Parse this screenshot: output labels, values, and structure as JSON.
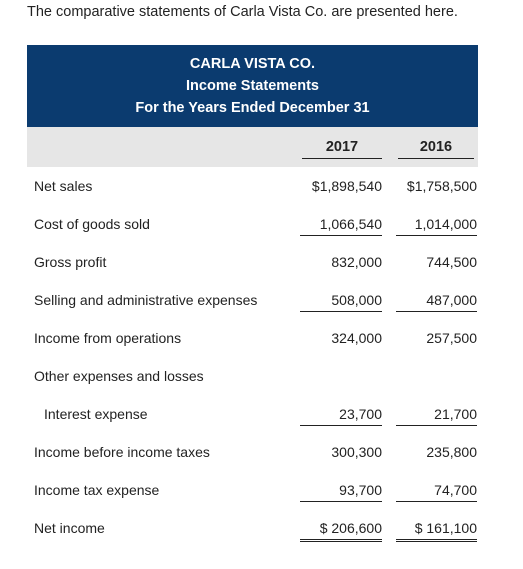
{
  "intro_text": "The comparative statements of Carla Vista Co. are presented here.",
  "header": {
    "company": "CARLA VISTA CO.",
    "statement": "Income Statements",
    "period": "For the Years Ended December 31"
  },
  "years": [
    "2017",
    "2016"
  ],
  "rows": [
    {
      "label": "Net sales",
      "v2017": "$1,898,540",
      "v2016": "$1,758,500"
    },
    {
      "label": "Cost of goods sold",
      "v2017": "1,066,540",
      "v2016": "1,014,000"
    },
    {
      "label": "Gross profit",
      "v2017": "832,000",
      "v2016": "744,500"
    },
    {
      "label": "Selling and administrative expenses",
      "v2017": "508,000",
      "v2016": "487,000"
    },
    {
      "label": "Income from operations",
      "v2017": "324,000",
      "v2016": "257,500"
    },
    {
      "label": "Other expenses and losses",
      "v2017": "",
      "v2016": ""
    },
    {
      "label": "Interest expense",
      "v2017": "23,700",
      "v2016": "21,700"
    },
    {
      "label": "Income before income taxes",
      "v2017": "300,300",
      "v2016": "235,800"
    },
    {
      "label": "Income tax expense",
      "v2017": "93,700",
      "v2016": "74,700"
    },
    {
      "label": "Net income",
      "v2017": "$ 206,600",
      "v2016": "$ 161,100"
    }
  ],
  "colors": {
    "header_background": "#0b3b6f",
    "header_text": "#ffffff",
    "year_band": "#e6e6e6"
  }
}
